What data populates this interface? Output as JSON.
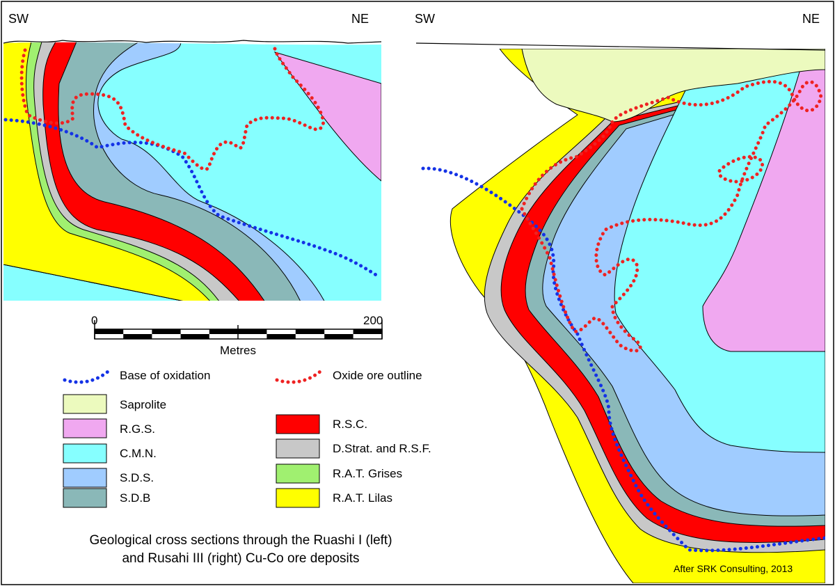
{
  "left_section": {
    "dir_left": "SW",
    "dir_right": "NE"
  },
  "right_section": {
    "dir_left": "SW",
    "dir_right": "NE"
  },
  "scale_bar": {
    "start": "0",
    "end": "200",
    "unit": "Metres"
  },
  "legend": {
    "lines": [
      {
        "label": "Base of oxidation",
        "color": "#1432E6"
      },
      {
        "label": "Oxide ore outline",
        "color": "#EE2222"
      }
    ],
    "units": [
      {
        "label": "Saprolite",
        "color": "#ECFABE"
      },
      {
        "label": "R.G.S.",
        "color": "#F0A8F0"
      },
      {
        "label": "C.M.N.",
        "color": "#86FFFF"
      },
      {
        "label": "S.D.S.",
        "color": "#A0CCFF"
      },
      {
        "label": "S.D.B",
        "color": "#8AB8B8"
      },
      {
        "label": "R.S.C.",
        "color": "#FF0000"
      },
      {
        "label": "D.Strat. and R.S.F.",
        "color": "#C8C8C8"
      },
      {
        "label": "R.A.T. Grises",
        "color": "#A0F070"
      },
      {
        "label": "R.A.T. Lilas",
        "color": "#FFFF00"
      }
    ]
  },
  "caption": {
    "line1": "Geological cross sections through the Ruashi  I  (left)",
    "line2": "and Rusahi III (right) Cu-Co ore deposits"
  },
  "credit": "After SRK Consulting, 2013"
}
